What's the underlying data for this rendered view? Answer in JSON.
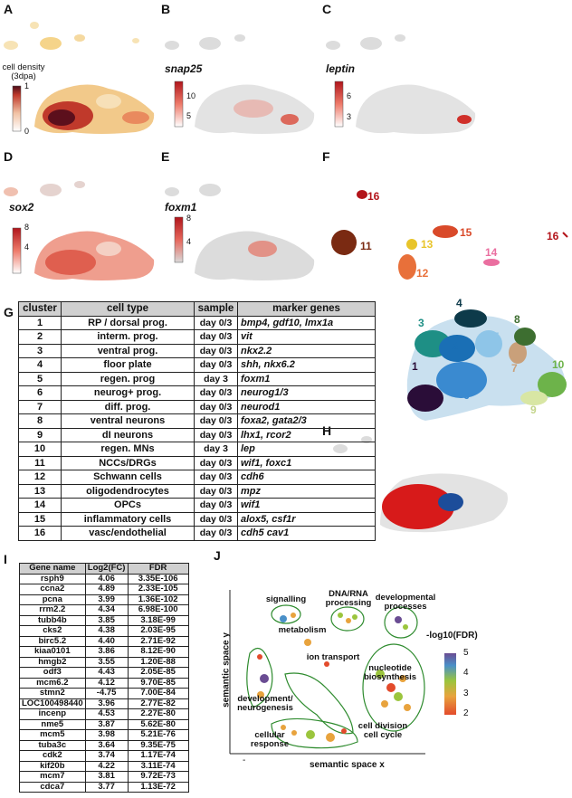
{
  "panels": {
    "A": {
      "letter": "A",
      "legend_title_1": "cell density",
      "legend_title_2": "(3dpa)",
      "max": "1",
      "min": "0"
    },
    "B": {
      "letter": "B",
      "gene": "snap25",
      "ticks": [
        "10",
        "5"
      ]
    },
    "C": {
      "letter": "C",
      "gene": "leptin",
      "ticks": [
        "6",
        "3"
      ]
    },
    "D": {
      "letter": "D",
      "gene": "sox2",
      "ticks": [
        "8",
        "4"
      ]
    },
    "E": {
      "letter": "E",
      "gene": "foxm1",
      "ticks": [
        "8",
        "4"
      ]
    },
    "F": {
      "letter": "F",
      "labels": [
        "16",
        "11",
        "13",
        "15",
        "12",
        "14",
        "16"
      ]
    },
    "G": {
      "letter": "G",
      "cluster_labels": [
        "1",
        "2",
        "3",
        "4",
        "5",
        "6",
        "7",
        "8",
        "9",
        "10"
      ]
    },
    "H": {
      "letter": "H"
    },
    "I": {
      "letter": "I"
    },
    "J": {
      "letter": "J"
    }
  },
  "cluster_table": {
    "headers": [
      "cluster",
      "cell type",
      "sample",
      "marker genes"
    ],
    "rows": [
      [
        "1",
        "RP / dorsal prog.",
        "day 0/3",
        "bmp4, gdf10, lmx1a"
      ],
      [
        "2",
        "interm. prog.",
        "day 0/3",
        "vit"
      ],
      [
        "3",
        "ventral prog.",
        "day 0/3",
        "nkx2.2"
      ],
      [
        "4",
        "floor plate",
        "day 0/3",
        "shh, nkx6.2"
      ],
      [
        "5",
        "regen. prog",
        "day 3",
        "foxm1"
      ],
      [
        "6",
        "neurog+ prog.",
        "day 0/3",
        "neurog1/3"
      ],
      [
        "7",
        "diff. prog.",
        "day 0/3",
        "neurod1"
      ],
      [
        "8",
        "ventral neurons",
        "day 0/3",
        "foxa2, gata2/3"
      ],
      [
        "9",
        "dI neurons",
        "day 0/3",
        "lhx1, rcor2"
      ],
      [
        "10",
        "regen. MNs",
        "day 3",
        "lep"
      ],
      [
        "11",
        "NCCs/DRGs",
        "day 0/3",
        "wif1, foxc1"
      ],
      [
        "12",
        "Schwann cells",
        "day 0/3",
        "cdh6"
      ],
      [
        "13",
        "oligodendrocytes",
        "day 0/3",
        "mpz"
      ],
      [
        "14",
        "OPCs",
        "day 0/3",
        "wif1"
      ],
      [
        "15",
        "inflammatory cells",
        "day 0/3",
        "alox5, csf1r"
      ],
      [
        "16",
        "vasc/endothelial",
        "day 0/3",
        "cdh5 cav1"
      ]
    ]
  },
  "gene_table": {
    "headers": [
      "Gene name",
      "Log2(FC)",
      "FDR"
    ],
    "rows": [
      [
        "rsph9",
        "4.06",
        "3.35E-106"
      ],
      [
        "ccna2",
        "4.89",
        "2.33E-105"
      ],
      [
        "pcna",
        "3.99",
        "1.36E-102"
      ],
      [
        "rrm2.2",
        "4.34",
        "6.98E-100"
      ],
      [
        "tubb4b",
        "3.85",
        "3.18E-99"
      ],
      [
        "cks2",
        "4.38",
        "2.03E-95"
      ],
      [
        "birc5.2",
        "4.40",
        "2.71E-92"
      ],
      [
        "kiaa0101",
        "3.86",
        "8.12E-90"
      ],
      [
        "hmgb2",
        "3.55",
        "1.20E-88"
      ],
      [
        "odf3",
        "4.43",
        "2.05E-85"
      ],
      [
        "mcm6.2",
        "4.12",
        "9.70E-85"
      ],
      [
        "stmn2",
        "-4.75",
        "7.00E-84"
      ],
      [
        "LOC100498440",
        "3.96",
        "2.77E-82"
      ],
      [
        "incenp",
        "4.53",
        "2.27E-80"
      ],
      [
        "nme5",
        "3.87",
        "5.62E-80"
      ],
      [
        "mcm5",
        "3.98",
        "5.21E-76"
      ],
      [
        "tuba3c",
        "3.64",
        "9.35E-75"
      ],
      [
        "cdk2",
        "3.74",
        "1.17E-74"
      ],
      [
        "kif20b",
        "4.22",
        "3.11E-74"
      ],
      [
        "mcm7",
        "3.81",
        "9.72E-73"
      ],
      [
        "cdca7",
        "3.77",
        "1.13E-72"
      ]
    ]
  },
  "semantic_plot": {
    "xlabel": "semantic space x",
    "ylabel": "semantic space y",
    "legend_title": "-log10(FDR)",
    "legend_ticks": [
      "5",
      "4",
      "3",
      "2"
    ],
    "minus": "-",
    "groups": [
      "signalling",
      "DNA/RNA\nprocessing",
      "developmental\nprocesses",
      "metabolism",
      "ion transport",
      "nucleotide\nbiosynthesis",
      "development/\nneurogenesis",
      "cell division\ncell cycle",
      "cellular\nresponse"
    ],
    "group_labels": {
      "signalling": "signalling",
      "dna": "DNA/RNA processing",
      "dev": "developmental processes",
      "metab": "metabolism",
      "ion": "ion transport",
      "nuc": "nucleotide biosynthesis",
      "neuro": "development/ neurogenesis",
      "cellcycle": "cell division cell cycle",
      "resp": "cellular response"
    },
    "text": {
      "signalling": "signalling",
      "dna_1": "DNA/RNA",
      "dna_2": "processing",
      "dev_1": "developmental",
      "dev_2": "processes",
      "metab": "metabolism",
      "ion": "ion transport",
      "nuc_1": "nucleotide",
      "nuc_2": "biosynthesis",
      "neuro_1": "development/",
      "neuro_2": "neurogenesis",
      "cc_1": "cell division",
      "cc_2": "cell cycle",
      "resp_1": "cellular",
      "resp_2": "response"
    },
    "colors": {
      "c5": "#6a4c93",
      "c4": "#4a90c8",
      "c3": "#9bc53d",
      "c2": "#e8a33d",
      "c1": "#e34b2c"
    }
  }
}
